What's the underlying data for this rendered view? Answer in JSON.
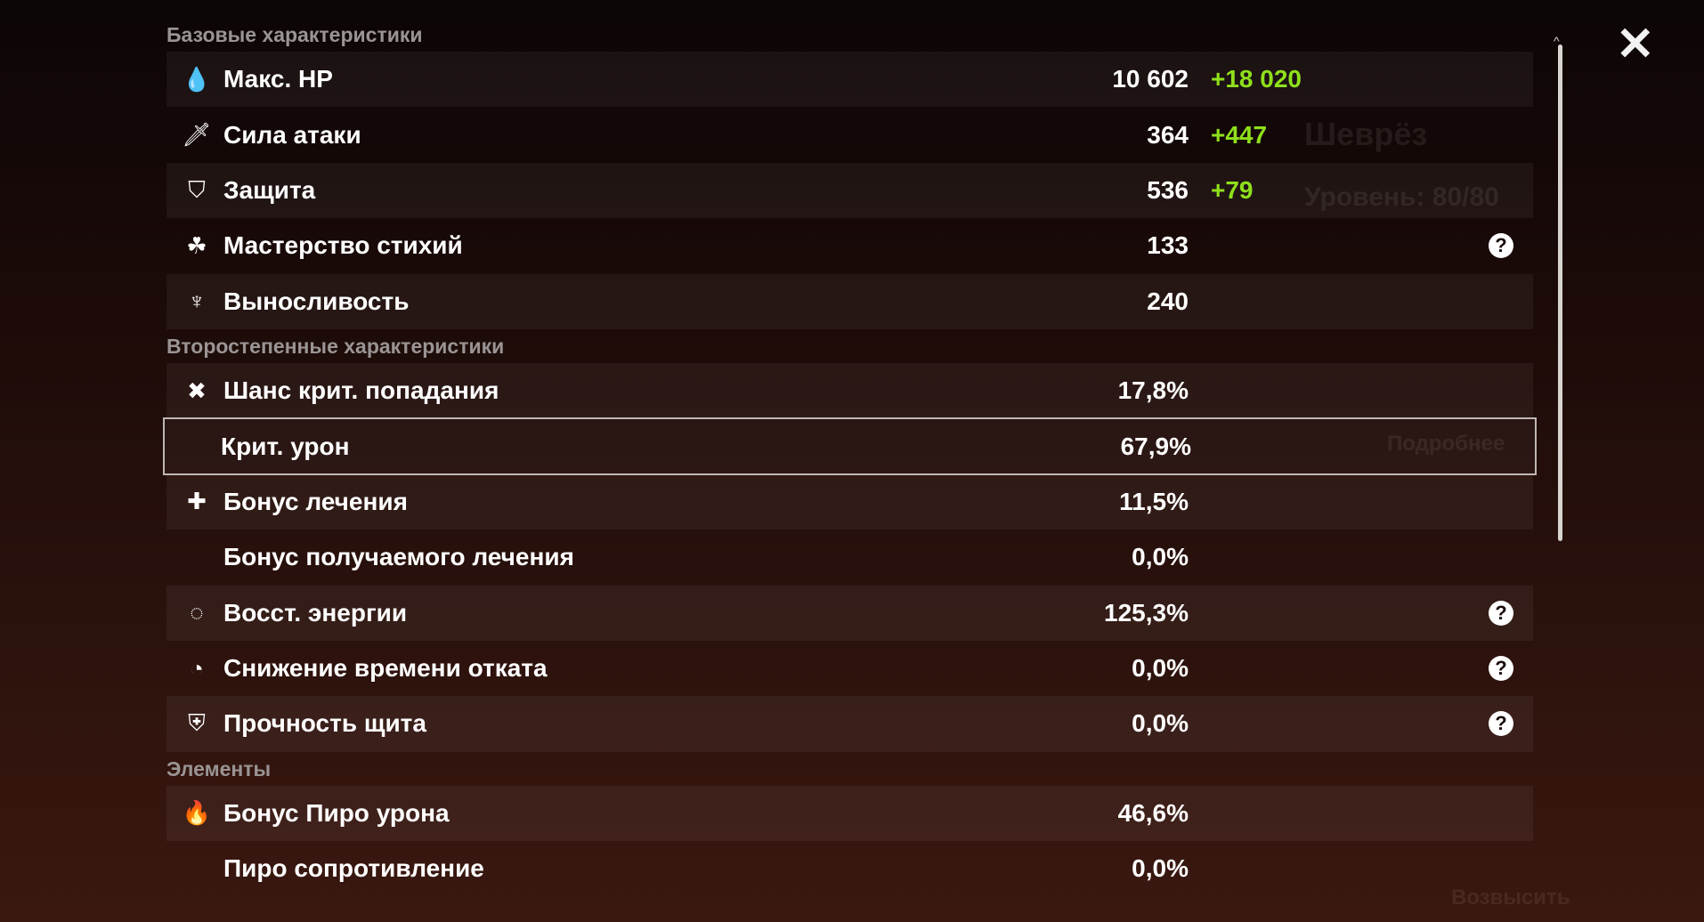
{
  "background": {
    "character_name": "Шеврёз",
    "level": "Уровень: 80/80",
    "details_button": "Подробнее",
    "ascend_button": "Возвысить"
  },
  "sections": [
    {
      "title": "Базовые характеристики",
      "rows": [
        {
          "icon": "hp-drop-icon",
          "glyph": "💧",
          "label": "Макс. HP",
          "value": "10 602",
          "bonus": "+18 020"
        },
        {
          "icon": "sword-icon",
          "glyph": "🗡",
          "label": "Сила атаки",
          "value": "364",
          "bonus": "+447"
        },
        {
          "icon": "shield-icon",
          "glyph": "⛉",
          "label": "Защита",
          "value": "536",
          "bonus": "+79"
        },
        {
          "icon": "elemental-mastery-icon",
          "glyph": "☘",
          "label": "Мастерство стихий",
          "value": "133",
          "help": true
        },
        {
          "icon": "stamina-icon",
          "glyph": "♆",
          "label": "Выносливость",
          "value": "240"
        }
      ]
    },
    {
      "title": "Второстепенные характеристики",
      "rows": [
        {
          "icon": "crit-rate-icon",
          "glyph": "✖",
          "label": "Шанс крит. попадания",
          "value": "17,8%"
        },
        {
          "icon": "",
          "glyph": "",
          "label": "Крит. урон",
          "value": "67,9%",
          "selected": true
        },
        {
          "icon": "healing-bonus-icon",
          "glyph": "✚",
          "label": "Бонус лечения",
          "value": "11,5%"
        },
        {
          "icon": "",
          "glyph": "",
          "label": "Бонус получаемого лечения",
          "value": "0,0%"
        },
        {
          "icon": "energy-recharge-icon",
          "glyph": "◌",
          "label": "Восст. энергии",
          "value": "125,3%",
          "help": true
        },
        {
          "icon": "cooldown-icon",
          "glyph": "◔",
          "label": "Снижение времени отката",
          "value": "0,0%",
          "help": true
        },
        {
          "icon": "shield-strength-icon",
          "glyph": "⛨",
          "label": "Прочность щита",
          "value": "0,0%",
          "help": true
        }
      ]
    },
    {
      "title": "Элементы",
      "rows": [
        {
          "icon": "pyro-icon",
          "glyph": "🔥",
          "label": "Бонус Пиро урона",
          "value": "46,6%"
        },
        {
          "icon": "",
          "glyph": "",
          "label": "Пиро сопротивление",
          "value": "0,0%"
        }
      ]
    }
  ],
  "help_glyph": "?",
  "close_glyph": "✕",
  "colors": {
    "bonus": "#8fe01c",
    "section_title": "#9a9494"
  }
}
